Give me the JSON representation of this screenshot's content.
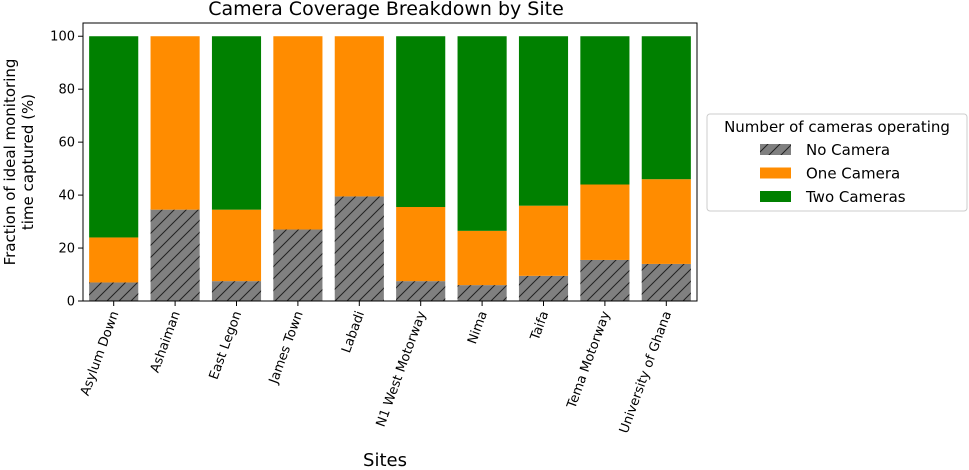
{
  "chart_data": {
    "type": "bar",
    "stacked": true,
    "title": "Camera Coverage Breakdown by Site",
    "xlabel": "Sites",
    "ylabel": [
      "Fraction of ideal monitoring",
      "time captured (%)"
    ],
    "ylim": [
      0,
      105
    ],
    "yticks": [
      0,
      20,
      40,
      60,
      80,
      100
    ],
    "categories": [
      "Asylum Down",
      "Ashaiman",
      "East Legon",
      "James Town",
      "Labadi",
      "N1 West Motorway",
      "Nima",
      "Taifa",
      "Tema Motorway",
      "University of Ghana"
    ],
    "series": [
      {
        "name": "No Camera",
        "color": "#808080",
        "hatch": true,
        "values": [
          7,
          34.5,
          7.5,
          27,
          39.5,
          7.5,
          6,
          9.5,
          15.5,
          14
        ]
      },
      {
        "name": "One Camera",
        "color": "#ff8c00",
        "hatch": false,
        "values": [
          17,
          65.5,
          27,
          73,
          60.5,
          28,
          20.5,
          26.5,
          28.5,
          32
        ]
      },
      {
        "name": "Two Cameras",
        "color": "#008000",
        "hatch": false,
        "values": [
          76,
          0,
          65.5,
          0,
          0,
          64.5,
          73.5,
          64,
          56,
          54
        ]
      }
    ],
    "legend": {
      "title": "Number of cameras operating",
      "placement": "outside-right"
    },
    "grid": false
  }
}
